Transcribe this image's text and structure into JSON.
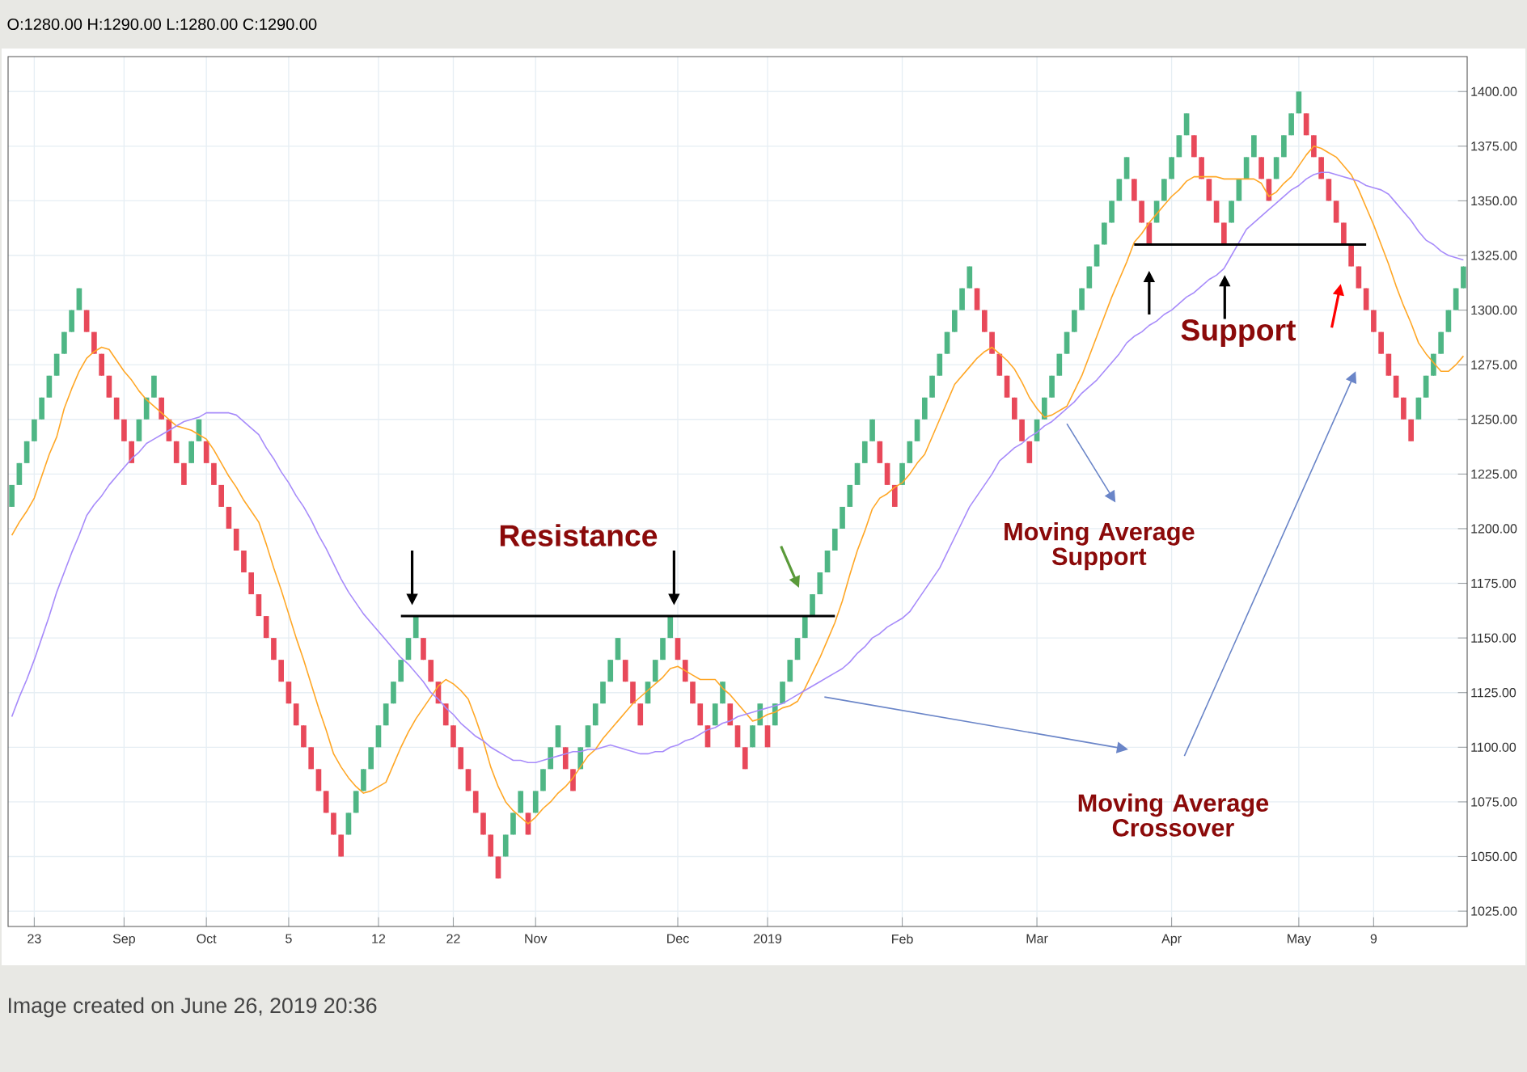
{
  "chart_data": {
    "type": "candlestick",
    "title": "O:1280.00 H:1290.00 L:1280.00 C:1290.00",
    "categories": [
      null,
      null,
      null,
      "23",
      null,
      null,
      null,
      null,
      null,
      null,
      null,
      null,
      null,
      null,
      null,
      "Sep",
      null,
      null,
      null,
      null,
      null,
      null,
      null,
      null,
      null,
      null,
      "Oct",
      null,
      null,
      null,
      null,
      null,
      null,
      null,
      null,
      null,
      null,
      "5",
      null,
      null,
      null,
      null,
      null,
      null,
      null,
      null,
      null,
      null,
      null,
      "12",
      null,
      null,
      null,
      null,
      null,
      null,
      null,
      null,
      null,
      "22",
      null,
      null,
      null,
      null,
      null,
      null,
      null,
      null,
      null,
      null,
      "Nov",
      null,
      null,
      null,
      null,
      null,
      null,
      null,
      null,
      null,
      null,
      null,
      null,
      null,
      null,
      null,
      null,
      null,
      null,
      "Dec",
      null,
      null,
      null,
      null,
      null,
      null,
      null,
      null,
      null,
      null,
      null,
      "2019",
      null,
      null,
      null,
      null,
      null,
      null,
      null,
      null,
      null,
      null,
      null,
      null,
      null,
      null,
      null,
      null,
      null,
      "Feb",
      null,
      null,
      null,
      null,
      null,
      null,
      null,
      null,
      null,
      null,
      null,
      null,
      null,
      null,
      null,
      null,
      null,
      "Mar",
      null,
      null,
      null,
      null,
      null,
      null,
      null,
      null,
      null,
      null,
      null,
      null,
      null,
      null,
      null,
      null,
      null,
      "Apr",
      null,
      null,
      null,
      null,
      null,
      null,
      null,
      null,
      null,
      null,
      null,
      null,
      null,
      null,
      null,
      null,
      "May",
      null,
      null,
      null,
      null,
      null,
      null,
      null,
      null,
      null,
      "9",
      null,
      null,
      null,
      null,
      null,
      null,
      null,
      null,
      null,
      null,
      null,
      null
    ],
    "ohlc": [
      [
        1210,
        1220,
        1210,
        1220
      ],
      [
        1220,
        1230,
        1220,
        1230
      ],
      [
        1230,
        1240,
        1230,
        1240
      ],
      [
        1240,
        1250,
        1240,
        1250
      ],
      [
        1250,
        1260,
        1250,
        1260
      ],
      [
        1260,
        1270,
        1260,
        1270
      ],
      [
        1270,
        1280,
        1270,
        1280
      ],
      [
        1280,
        1290,
        1280,
        1290
      ],
      [
        1290,
        1300,
        1290,
        1300
      ],
      [
        1300,
        1310,
        1300,
        1310
      ],
      [
        1300,
        1300,
        1290,
        1290
      ],
      [
        1290,
        1290,
        1280,
        1280
      ],
      [
        1280,
        1280,
        1270,
        1270
      ],
      [
        1270,
        1270,
        1260,
        1260
      ],
      [
        1260,
        1260,
        1250,
        1250
      ],
      [
        1250,
        1250,
        1240,
        1240
      ],
      [
        1240,
        1240,
        1230,
        1230
      ],
      [
        1240,
        1250,
        1240,
        1250
      ],
      [
        1250,
        1260,
        1250,
        1260
      ],
      [
        1260,
        1270,
        1260,
        1270
      ],
      [
        1260,
        1260,
        1250,
        1250
      ],
      [
        1250,
        1250,
        1240,
        1240
      ],
      [
        1240,
        1240,
        1230,
        1230
      ],
      [
        1230,
        1230,
        1220,
        1220
      ],
      [
        1230,
        1240,
        1230,
        1240
      ],
      [
        1240,
        1250,
        1240,
        1250
      ],
      [
        1240,
        1240,
        1230,
        1230
      ],
      [
        1230,
        1230,
        1220,
        1220
      ],
      [
        1220,
        1220,
        1210,
        1210
      ],
      [
        1210,
        1210,
        1200,
        1200
      ],
      [
        1200,
        1200,
        1190,
        1190
      ],
      [
        1190,
        1190,
        1180,
        1180
      ],
      [
        1180,
        1180,
        1170,
        1170
      ],
      [
        1170,
        1170,
        1160,
        1160
      ],
      [
        1160,
        1160,
        1150,
        1150
      ],
      [
        1150,
        1150,
        1140,
        1140
      ],
      [
        1140,
        1140,
        1130,
        1130
      ],
      [
        1130,
        1130,
        1120,
        1120
      ],
      [
        1120,
        1120,
        1110,
        1110
      ],
      [
        1110,
        1110,
        1100,
        1100
      ],
      [
        1100,
        1100,
        1090,
        1090
      ],
      [
        1090,
        1090,
        1080,
        1080
      ],
      [
        1080,
        1080,
        1070,
        1070
      ],
      [
        1070,
        1070,
        1060,
        1060
      ],
      [
        1060,
        1060,
        1050,
        1050
      ],
      [
        1060,
        1070,
        1060,
        1070
      ],
      [
        1070,
        1080,
        1070,
        1080
      ],
      [
        1080,
        1090,
        1080,
        1090
      ],
      [
        1090,
        1100,
        1090,
        1100
      ],
      [
        1100,
        1110,
        1100,
        1110
      ],
      [
        1110,
        1120,
        1110,
        1120
      ],
      [
        1120,
        1130,
        1120,
        1130
      ],
      [
        1130,
        1140,
        1130,
        1140
      ],
      [
        1140,
        1150,
        1140,
        1150
      ],
      [
        1150,
        1160,
        1150,
        1160
      ],
      [
        1150,
        1150,
        1140,
        1140
      ],
      [
        1140,
        1140,
        1130,
        1130
      ],
      [
        1130,
        1130,
        1120,
        1120
      ],
      [
        1120,
        1120,
        1110,
        1110
      ],
      [
        1110,
        1110,
        1100,
        1100
      ],
      [
        1100,
        1100,
        1090,
        1090
      ],
      [
        1090,
        1090,
        1080,
        1080
      ],
      [
        1080,
        1080,
        1070,
        1070
      ],
      [
        1070,
        1070,
        1060,
        1060
      ],
      [
        1060,
        1060,
        1050,
        1050
      ],
      [
        1050,
        1050,
        1040,
        1040
      ],
      [
        1050,
        1060,
        1050,
        1060
      ],
      [
        1060,
        1070,
        1060,
        1070
      ],
      [
        1070,
        1080,
        1070,
        1080
      ],
      [
        1070,
        1070,
        1060,
        1060
      ],
      [
        1070,
        1080,
        1070,
        1080
      ],
      [
        1080,
        1090,
        1080,
        1090
      ],
      [
        1090,
        1100,
        1090,
        1100
      ],
      [
        1100,
        1110,
        1100,
        1110
      ],
      [
        1100,
        1100,
        1090,
        1090
      ],
      [
        1090,
        1090,
        1080,
        1080
      ],
      [
        1090,
        1100,
        1090,
        1100
      ],
      [
        1100,
        1110,
        1100,
        1110
      ],
      [
        1110,
        1120,
        1110,
        1120
      ],
      [
        1120,
        1130,
        1120,
        1130
      ],
      [
        1130,
        1140,
        1130,
        1140
      ],
      [
        1140,
        1150,
        1140,
        1150
      ],
      [
        1140,
        1140,
        1130,
        1130
      ],
      [
        1130,
        1130,
        1120,
        1120
      ],
      [
        1120,
        1120,
        1110,
        1110
      ],
      [
        1120,
        1130,
        1120,
        1130
      ],
      [
        1130,
        1140,
        1130,
        1140
      ],
      [
        1140,
        1150,
        1140,
        1150
      ],
      [
        1150,
        1160,
        1150,
        1160
      ],
      [
        1150,
        1150,
        1140,
        1140
      ],
      [
        1140,
        1140,
        1130,
        1130
      ],
      [
        1130,
        1130,
        1120,
        1120
      ],
      [
        1120,
        1120,
        1110,
        1110
      ],
      [
        1110,
        1110,
        1100,
        1100
      ],
      [
        1110,
        1120,
        1110,
        1120
      ],
      [
        1120,
        1130,
        1120,
        1130
      ],
      [
        1120,
        1120,
        1110,
        1110
      ],
      [
        1110,
        1110,
        1100,
        1100
      ],
      [
        1100,
        1100,
        1090,
        1090
      ],
      [
        1100,
        1110,
        1100,
        1110
      ],
      [
        1110,
        1120,
        1110,
        1120
      ],
      [
        1110,
        1110,
        1100,
        1100
      ],
      [
        1110,
        1120,
        1110,
        1120
      ],
      [
        1120,
        1130,
        1120,
        1130
      ],
      [
        1130,
        1140,
        1130,
        1140
      ],
      [
        1140,
        1150,
        1140,
        1150
      ],
      [
        1150,
        1160,
        1150,
        1160
      ],
      [
        1160,
        1170,
        1160,
        1170
      ],
      [
        1170,
        1180,
        1170,
        1180
      ],
      [
        1180,
        1190,
        1180,
        1190
      ],
      [
        1190,
        1200,
        1190,
        1200
      ],
      [
        1200,
        1210,
        1200,
        1210
      ],
      [
        1210,
        1220,
        1210,
        1220
      ],
      [
        1220,
        1230,
        1220,
        1230
      ],
      [
        1230,
        1240,
        1230,
        1240
      ],
      [
        1240,
        1250,
        1240,
        1250
      ],
      [
        1240,
        1240,
        1230,
        1230
      ],
      [
        1230,
        1230,
        1220,
        1220
      ],
      [
        1220,
        1220,
        1210,
        1210
      ],
      [
        1220,
        1230,
        1220,
        1230
      ],
      [
        1230,
        1240,
        1230,
        1240
      ],
      [
        1240,
        1250,
        1240,
        1250
      ],
      [
        1250,
        1260,
        1250,
        1260
      ],
      [
        1260,
        1270,
        1260,
        1270
      ],
      [
        1270,
        1280,
        1270,
        1280
      ],
      [
        1280,
        1290,
        1280,
        1290
      ],
      [
        1290,
        1300,
        1290,
        1300
      ],
      [
        1300,
        1310,
        1300,
        1310
      ],
      [
        1310,
        1320,
        1310,
        1320
      ],
      [
        1310,
        1310,
        1300,
        1300
      ],
      [
        1300,
        1300,
        1290,
        1290
      ],
      [
        1290,
        1290,
        1280,
        1280
      ],
      [
        1280,
        1280,
        1270,
        1270
      ],
      [
        1270,
        1270,
        1260,
        1260
      ],
      [
        1260,
        1260,
        1250,
        1250
      ],
      [
        1250,
        1250,
        1240,
        1240
      ],
      [
        1240,
        1240,
        1230,
        1230
      ],
      [
        1240,
        1250,
        1240,
        1250
      ],
      [
        1250,
        1260,
        1250,
        1260
      ],
      [
        1260,
        1270,
        1260,
        1270
      ],
      [
        1270,
        1280,
        1270,
        1280
      ],
      [
        1280,
        1290,
        1280,
        1290
      ],
      [
        1290,
        1300,
        1290,
        1300
      ],
      [
        1300,
        1310,
        1300,
        1310
      ],
      [
        1310,
        1320,
        1310,
        1320
      ],
      [
        1320,
        1330,
        1320,
        1330
      ],
      [
        1330,
        1340,
        1330,
        1340
      ],
      [
        1340,
        1350,
        1340,
        1350
      ],
      [
        1350,
        1360,
        1350,
        1360
      ],
      [
        1360,
        1370,
        1360,
        1370
      ],
      [
        1360,
        1360,
        1350,
        1350
      ],
      [
        1350,
        1350,
        1340,
        1340
      ],
      [
        1340,
        1340,
        1330,
        1330
      ],
      [
        1340,
        1350,
        1340,
        1350
      ],
      [
        1350,
        1360,
        1350,
        1360
      ],
      [
        1360,
        1370,
        1360,
        1370
      ],
      [
        1370,
        1380,
        1370,
        1380
      ],
      [
        1380,
        1390,
        1380,
        1390
      ],
      [
        1380,
        1380,
        1370,
        1370
      ],
      [
        1370,
        1370,
        1360,
        1360
      ],
      [
        1360,
        1360,
        1350,
        1350
      ],
      [
        1350,
        1350,
        1340,
        1340
      ],
      [
        1340,
        1340,
        1330,
        1330
      ],
      [
        1340,
        1350,
        1340,
        1350
      ],
      [
        1350,
        1360,
        1350,
        1360
      ],
      [
        1360,
        1370,
        1360,
        1370
      ],
      [
        1370,
        1380,
        1370,
        1380
      ],
      [
        1370,
        1370,
        1360,
        1360
      ],
      [
        1360,
        1360,
        1350,
        1350
      ],
      [
        1360,
        1370,
        1360,
        1370
      ],
      [
        1370,
        1380,
        1370,
        1380
      ],
      [
        1380,
        1390,
        1380,
        1390
      ],
      [
        1390,
        1400,
        1390,
        1400
      ],
      [
        1390,
        1390,
        1380,
        1380
      ],
      [
        1380,
        1380,
        1370,
        1370
      ],
      [
        1370,
        1370,
        1360,
        1360
      ],
      [
        1360,
        1360,
        1350,
        1350
      ],
      [
        1350,
        1350,
        1340,
        1340
      ],
      [
        1340,
        1340,
        1330,
        1330
      ],
      [
        1330,
        1330,
        1320,
        1320
      ],
      [
        1320,
        1320,
        1310,
        1310
      ],
      [
        1310,
        1310,
        1300,
        1300
      ],
      [
        1300,
        1300,
        1290,
        1290
      ],
      [
        1290,
        1290,
        1280,
        1280
      ],
      [
        1280,
        1280,
        1270,
        1270
      ],
      [
        1270,
        1270,
        1260,
        1260
      ],
      [
        1260,
        1260,
        1250,
        1250
      ],
      [
        1250,
        1250,
        1240,
        1240
      ],
      [
        1250,
        1260,
        1250,
        1260
      ],
      [
        1260,
        1270,
        1260,
        1270
      ],
      [
        1270,
        1280,
        1270,
        1280
      ],
      [
        1280,
        1290,
        1280,
        1290
      ],
      [
        1290,
        1300,
        1290,
        1300
      ],
      [
        1300,
        1310,
        1300,
        1310
      ],
      [
        1310,
        1320,
        1310,
        1320
      ]
    ],
    "colors": [
      "#4fb685",
      "#4fb685",
      "#4fb685",
      "#4fb685",
      "#4fb685",
      "#4fb685",
      "#4fb685",
      "#4fb685",
      "#4fb685",
      "#4fb685",
      "#e8495a",
      "#e8495a",
      "#e8495a",
      "#e8495a",
      "#e8495a",
      "#e8495a",
      "#e8495a",
      "#4fb685",
      "#4fb685",
      "#4fb685",
      "#e8495a",
      "#e8495a",
      "#e8495a",
      "#e8495a",
      "#4fb685",
      "#4fb685",
      "#e8495a",
      "#e8495a",
      "#e8495a",
      "#e8495a",
      "#e8495a",
      "#e8495a",
      "#e8495a",
      "#e8495a",
      "#e8495a",
      "#e8495a",
      "#e8495a",
      "#e8495a",
      "#e8495a",
      "#e8495a",
      "#e8495a",
      "#e8495a",
      "#e8495a",
      "#e8495a",
      "#e8495a",
      "#4fb685",
      "#4fb685",
      "#4fb685",
      "#4fb685",
      "#4fb685",
      "#4fb685",
      "#4fb685",
      "#4fb685",
      "#4fb685",
      "#4fb685",
      "#e8495a",
      "#e8495a",
      "#e8495a",
      "#e8495a",
      "#e8495a",
      "#e8495a",
      "#e8495a",
      "#e8495a",
      "#e8495a",
      "#e8495a",
      "#e8495a",
      "#4fb685",
      "#4fb685",
      "#4fb685",
      "#e8495a",
      "#4fb685",
      "#4fb685",
      "#4fb685",
      "#4fb685",
      "#e8495a",
      "#e8495a",
      "#4fb685",
      "#4fb685",
      "#4fb685",
      "#4fb685",
      "#4fb685",
      "#4fb685",
      "#e8495a",
      "#e8495a",
      "#e8495a",
      "#4fb685",
      "#4fb685",
      "#4fb685",
      "#4fb685",
      "#e8495a",
      "#e8495a",
      "#e8495a",
      "#e8495a",
      "#e8495a",
      "#4fb685",
      "#4fb685",
      "#e8495a",
      "#e8495a",
      "#e8495a",
      "#4fb685",
      "#4fb685",
      "#e8495a",
      "#4fb685",
      "#4fb685",
      "#4fb685",
      "#4fb685",
      "#4fb685",
      "#4fb685",
      "#4fb685",
      "#4fb685",
      "#4fb685",
      "#4fb685",
      "#4fb685",
      "#4fb685",
      "#4fb685",
      "#4fb685",
      "#e8495a",
      "#e8495a",
      "#e8495a",
      "#4fb685",
      "#4fb685",
      "#4fb685",
      "#4fb685",
      "#4fb685",
      "#4fb685",
      "#4fb685",
      "#4fb685",
      "#4fb685",
      "#4fb685",
      "#e8495a",
      "#e8495a",
      "#e8495a",
      "#e8495a",
      "#e8495a",
      "#e8495a",
      "#e8495a",
      "#e8495a",
      "#4fb685",
      "#4fb685",
      "#4fb685",
      "#4fb685",
      "#4fb685",
      "#4fb685",
      "#4fb685",
      "#4fb685",
      "#4fb685",
      "#4fb685",
      "#4fb685",
      "#4fb685",
      "#4fb685",
      "#e8495a",
      "#e8495a",
      "#e8495a",
      "#4fb685",
      "#4fb685",
      "#4fb685",
      "#4fb685",
      "#4fb685",
      "#e8495a",
      "#e8495a",
      "#e8495a",
      "#e8495a",
      "#e8495a",
      "#4fb685",
      "#4fb685",
      "#4fb685",
      "#4fb685",
      "#e8495a",
      "#e8495a",
      "#4fb685",
      "#4fb685",
      "#4fb685",
      "#4fb685",
      "#e8495a",
      "#e8495a",
      "#e8495a",
      "#e8495a",
      "#e8495a",
      "#e8495a",
      "#e8495a",
      "#e8495a",
      "#e8495a",
      "#e8495a",
      "#e8495a",
      "#e8495a",
      "#e8495a",
      "#e8495a",
      "#e8495a",
      "#4fb685",
      "#4fb685",
      "#4fb685",
      "#4fb685",
      "#4fb685",
      "#4fb685",
      "#4fb685"
    ],
    "series": [
      {
        "type": "line",
        "color": "#ffa726",
        "values": [
          1197,
          1203,
          1208,
          1214,
          1224,
          1234,
          1242,
          1255,
          1264,
          1272,
          1278,
          1281,
          1283,
          1282,
          1277,
          1272,
          1268,
          1263,
          1259,
          1256,
          1253,
          1250,
          1247,
          1246,
          1245,
          1243,
          1241,
          1236,
          1230,
          1224,
          1219,
          1213,
          1208,
          1203,
          1193,
          1182,
          1172,
          1161,
          1150,
          1140,
          1129,
          1118,
          1108,
          1097,
          1091,
          1086,
          1082,
          1079,
          1080,
          1082,
          1084,
          1092,
          1100,
          1107,
          1113,
          1118,
          1123,
          1128,
          1131,
          1129,
          1126,
          1122,
          1113,
          1103,
          1091,
          1082,
          1075,
          1071,
          1068,
          1065,
          1068,
          1072,
          1075,
          1079,
          1082,
          1086,
          1091,
          1096,
          1099,
          1104,
          1108,
          1112,
          1116,
          1120,
          1123,
          1126,
          1129,
          1132,
          1136,
          1137,
          1135,
          1133,
          1131,
          1131,
          1131,
          1127,
          1124,
          1120,
          1116,
          1112,
          1113,
          1115,
          1116,
          1118,
          1119,
          1121,
          1127,
          1134,
          1141,
          1149,
          1157,
          1167,
          1179,
          1190,
          1199,
          1209,
          1214,
          1216,
          1219,
          1221,
          1225,
          1230,
          1234,
          1242,
          1250,
          1258,
          1266,
          1270,
          1274,
          1278,
          1281,
          1283,
          1280,
          1277,
          1273,
          1267,
          1260,
          1255,
          1251,
          1252,
          1254,
          1256,
          1263,
          1270,
          1279,
          1288,
          1297,
          1306,
          1314,
          1322,
          1331,
          1335,
          1340,
          1344,
          1348,
          1352,
          1355,
          1359,
          1361,
          1361,
          1361,
          1361,
          1360,
          1360,
          1360,
          1360,
          1360,
          1358,
          1352,
          1354,
          1358,
          1361,
          1366,
          1371,
          1375,
          1374,
          1372,
          1370,
          1366,
          1362,
          1355,
          1347,
          1339,
          1330,
          1321,
          1311,
          1302,
          1294,
          1285,
          1280,
          1276,
          1272,
          1272,
          1275,
          1279
        ]
      },
      {
        "type": "line",
        "color": "#a78bfa",
        "values": [
          1114,
          1123,
          1131,
          1140,
          1150,
          1160,
          1171,
          1180,
          1189,
          1197,
          1206,
          1211,
          1215,
          1220,
          1224,
          1228,
          1232,
          1235,
          1239,
          1241,
          1243,
          1245,
          1247,
          1249,
          1250,
          1251,
          1253,
          1253,
          1253,
          1253,
          1252,
          1249,
          1246,
          1243,
          1237,
          1232,
          1226,
          1221,
          1215,
          1210,
          1204,
          1197,
          1191,
          1184,
          1177,
          1171,
          1166,
          1161,
          1157,
          1153,
          1149,
          1145,
          1141,
          1138,
          1134,
          1130,
          1125,
          1122,
          1118,
          1115,
          1111,
          1108,
          1105,
          1103,
          1100,
          1098,
          1096,
          1094,
          1094,
          1093,
          1093,
          1094,
          1095,
          1096,
          1097,
          1098,
          1098,
          1099,
          1099,
          1100,
          1101,
          1100,
          1099,
          1098,
          1097,
          1097,
          1098,
          1098,
          1100,
          1101,
          1103,
          1104,
          1106,
          1108,
          1109,
          1111,
          1112,
          1114,
          1115,
          1116,
          1117,
          1118,
          1119,
          1120,
          1122,
          1124,
          1126,
          1128,
          1130,
          1132,
          1134,
          1136,
          1139,
          1143,
          1146,
          1150,
          1152,
          1155,
          1157,
          1159,
          1162,
          1167,
          1172,
          1177,
          1182,
          1189,
          1196,
          1203,
          1210,
          1215,
          1220,
          1225,
          1231,
          1234,
          1237,
          1239,
          1242,
          1244,
          1247,
          1249,
          1252,
          1255,
          1258,
          1262,
          1265,
          1268,
          1272,
          1276,
          1280,
          1285,
          1288,
          1290,
          1293,
          1295,
          1298,
          1300,
          1303,
          1306,
          1308,
          1311,
          1314,
          1316,
          1319,
          1325,
          1331,
          1337,
          1340,
          1343,
          1346,
          1349,
          1352,
          1355,
          1357,
          1360,
          1362,
          1363,
          1363,
          1362,
          1361,
          1360,
          1359,
          1357,
          1356,
          1355,
          1353,
          1349,
          1345,
          1341,
          1336,
          1332,
          1330,
          1327,
          1325,
          1324,
          1323
        ]
      },
      {
        "type": "line",
        "color": "#000000",
        "values": [
          null,
          null,
          null,
          null,
          null,
          null,
          null,
          null,
          null,
          null,
          null,
          null,
          null,
          null,
          null,
          null,
          null,
          null,
          null,
          null,
          null,
          null,
          null,
          null,
          null,
          null,
          null,
          null,
          null,
          null,
          null,
          null,
          null,
          null,
          null,
          null,
          null,
          null,
          null,
          null,
          null,
          null,
          null,
          null,
          null,
          null,
          null,
          null,
          null,
          null,
          null,
          null,
          1160,
          1160,
          1160,
          1160,
          1160,
          1160,
          1160,
          1160,
          1160,
          1160,
          1160,
          1160,
          1160,
          1160,
          1160,
          1160,
          1160,
          1160,
          1160,
          1160,
          1160,
          1160,
          1160,
          1160,
          1160,
          1160,
          1160,
          1160,
          1160,
          1160,
          1160,
          1160,
          1160,
          1160,
          1160,
          1160,
          1160,
          1160,
          1160,
          1160,
          1160,
          1160,
          1160,
          1160,
          1160,
          1160,
          1160,
          1160,
          1160,
          1160,
          1160,
          1160,
          1160,
          1160,
          1160,
          1160,
          1160,
          1160,
          1160,
          null,
          null,
          null,
          null,
          null,
          null,
          null,
          null,
          null,
          null,
          null,
          null,
          null,
          null,
          null,
          null,
          null,
          null,
          null,
          null,
          null,
          null,
          null,
          null,
          null,
          null,
          null,
          null,
          null,
          null,
          null,
          null,
          null,
          null,
          null,
          null,
          null,
          null,
          null,
          null,
          null,
          null,
          null,
          null,
          null,
          null,
          null,
          null,
          null,
          null,
          null,
          null,
          null,
          null,
          null,
          null,
          null,
          null,
          null,
          null,
          null,
          null,
          null,
          null,
          null,
          null,
          null,
          null,
          null,
          null,
          null,
          null,
          null,
          null,
          null,
          null,
          null,
          null,
          null,
          null,
          null,
          null,
          null,
          null
        ]
      },
      {
        "type": "line",
        "color": "#000000",
        "values": [
          null,
          null,
          null,
          null,
          null,
          null,
          null,
          null,
          null,
          null,
          null,
          null,
          null,
          null,
          null,
          null,
          null,
          null,
          null,
          null,
          null,
          null,
          null,
          null,
          null,
          null,
          null,
          null,
          null,
          null,
          null,
          null,
          null,
          null,
          null,
          null,
          null,
          null,
          null,
          null,
          null,
          null,
          null,
          null,
          null,
          null,
          null,
          null,
          null,
          null,
          null,
          null,
          null,
          null,
          null,
          null,
          null,
          null,
          null,
          null,
          null,
          null,
          null,
          null,
          null,
          null,
          null,
          null,
          null,
          null,
          null,
          null,
          null,
          null,
          null,
          null,
          null,
          null,
          null,
          null,
          null,
          null,
          null,
          null,
          null,
          null,
          null,
          null,
          null,
          null,
          null,
          null,
          null,
          null,
          null,
          null,
          null,
          null,
          null,
          null,
          null,
          null,
          null,
          null,
          null,
          null,
          null,
          null,
          null,
          null,
          null,
          null,
          null,
          null,
          null,
          null,
          null,
          null,
          null,
          null,
          null,
          null,
          null,
          null,
          null,
          null,
          null,
          null,
          null,
          null,
          null,
          null,
          null,
          null,
          null,
          null,
          null,
          null,
          null,
          null,
          null,
          null,
          null,
          null,
          null,
          null,
          null,
          null,
          null,
          null,
          1330,
          1330,
          1330,
          1330,
          1330,
          1330,
          1330,
          1330,
          1330,
          1330,
          1330,
          1330,
          1330,
          1330,
          1330,
          1330,
          1330,
          1330,
          1330,
          1330,
          1330,
          1330,
          1330,
          1330,
          1330,
          1330,
          1330,
          1330,
          1330,
          1330,
          1330,
          1330,
          null,
          null,
          null,
          null,
          null,
          null,
          null,
          null,
          null,
          null,
          null,
          null,
          null
        ]
      }
    ],
    "ylim": [
      1018,
      1416
    ],
    "yticks": [
      {
        "value": 1025,
        "label": "1025.00"
      },
      {
        "value": 1050,
        "label": "1050.00"
      },
      {
        "value": 1075,
        "label": "1075.00"
      },
      {
        "value": 1100,
        "label": "1100.00"
      },
      {
        "value": 1125,
        "label": "1125.00"
      },
      {
        "value": 1150,
        "label": "1150.00"
      },
      {
        "value": 1175,
        "label": "1175.00"
      },
      {
        "value": 1200,
        "label": "1200.00"
      },
      {
        "value": 1225,
        "label": "1225.00"
      },
      {
        "value": 1250,
        "label": "1250.00"
      },
      {
        "value": 1275,
        "label": "1275.00"
      },
      {
        "value": 1300,
        "label": "1300.00"
      },
      {
        "value": 1325,
        "label": "1325.00"
      },
      {
        "value": 1350,
        "label": "1350.00"
      },
      {
        "value": 1375,
        "label": "1375.00"
      },
      {
        "value": 1400,
        "label": "1400.00"
      }
    ],
    "grid": true,
    "annotations": [
      "Resistance",
      "Support",
      "Moving Average Support",
      "Moving Average Crossover",
      "Image created on June 26, 2019 20:36"
    ]
  }
}
